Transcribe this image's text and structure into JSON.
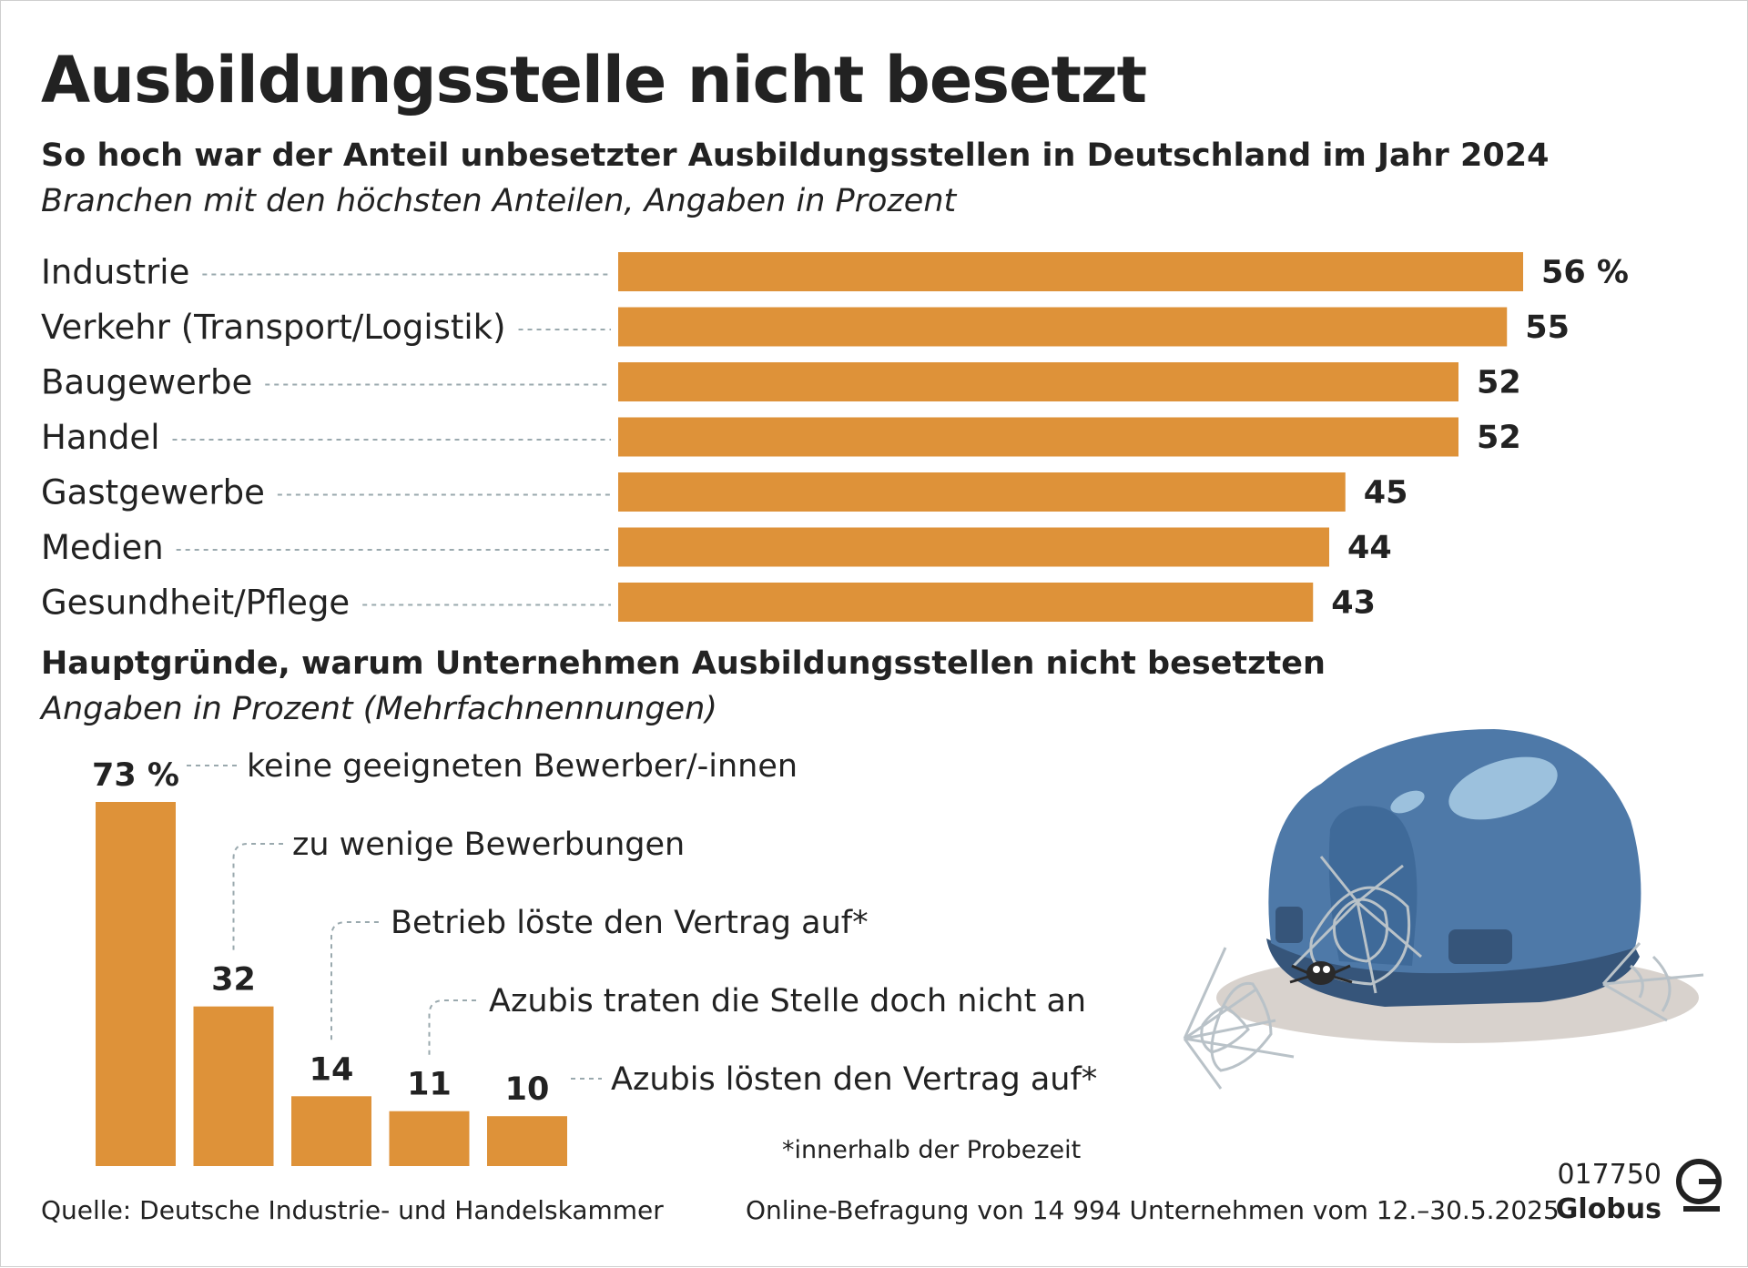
{
  "title": "Ausbildungsstelle nicht besetzt",
  "section1": {
    "heading": "So hoch war der Anteil unbesetzter Ausbildungsstellen in Deutschland im Jahr 2024",
    "subheading": "Branchen mit den höchsten Anteilen, Angaben in Prozent"
  },
  "section2": {
    "heading": "Hauptgründe, warum Unternehmen Ausbildungsstellen nicht besetzten",
    "subheading": "Angaben in Prozent (Mehrfachnennungen)"
  },
  "colors": {
    "bar": "#de9239",
    "leader": "#9aa9ae",
    "helmet": "#4e79a8",
    "helmet_dark": "#36557a",
    "helmet_light": "#9cc1dd",
    "shadow": "#d8d2cd",
    "web": "#b9c2c8"
  },
  "chart_data": [
    {
      "type": "bar",
      "orientation": "horizontal",
      "title": "So hoch war der Anteil unbesetzter Ausbildungsstellen in Deutschland im Jahr 2024",
      "categories": [
        "Industrie",
        "Verkehr (Transport/Logistik)",
        "Baugewerbe",
        "Handel",
        "Gastgewerbe",
        "Medien",
        "Gesundheit/Pflege"
      ],
      "values": [
        56,
        55,
        52,
        52,
        45,
        44,
        43
      ],
      "value_labels": [
        "56 %",
        "55",
        "52",
        "52",
        "45",
        "44",
        "43"
      ],
      "unit": "Prozent",
      "xlim": [
        0,
        56
      ]
    },
    {
      "type": "bar",
      "orientation": "vertical",
      "title": "Hauptgründe, warum Unternehmen Ausbildungsstellen nicht besetzten",
      "categories": [
        "keine geeigneten Bewerber/-innen",
        "zu wenige Bewerbungen",
        "Betrieb löste den Vertrag auf*",
        "Azubis traten die Stelle doch nicht an",
        "Azubis lösten den Vertrag auf*"
      ],
      "values": [
        73,
        32,
        14,
        11,
        10
      ],
      "value_labels": [
        "73 %",
        "32",
        "14",
        "11",
        "10"
      ],
      "unit": "Prozent",
      "ylim": [
        0,
        73
      ]
    }
  ],
  "footnote": "*innerhalb der Probezeit",
  "source": "Quelle: Deutsche Industrie- und Handelskammer",
  "survey": "Online-Befragung von 14 994 Unternehmen vom 12.–30.5.2025",
  "globus": {
    "code": "017750",
    "brand": "Globus"
  },
  "icons": {
    "illustration": "helmet-with-spiderweb-icon",
    "logo": "globus-logo-icon"
  }
}
